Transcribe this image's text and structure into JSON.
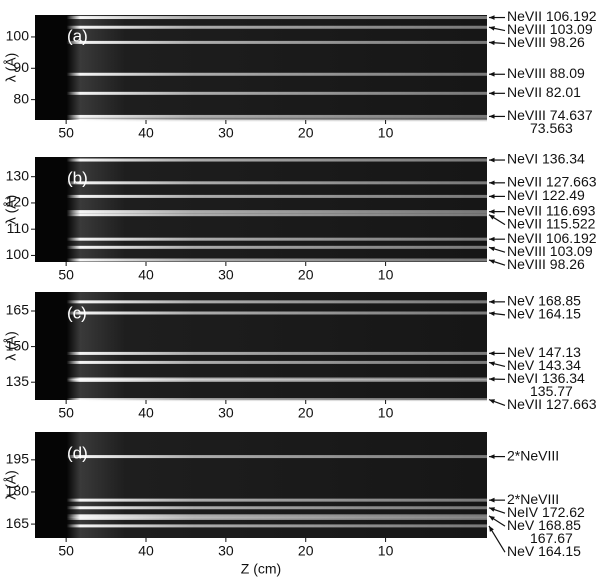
{
  "chart_data": [
    {
      "type": "spectral-image",
      "panel_label": "(a)",
      "ylabel": "λ (Å)",
      "xlim": [
        53.9,
        -2.7
      ],
      "xticks": [
        50,
        40,
        30,
        20,
        10
      ],
      "ylim": [
        73.5,
        107
      ],
      "yticks": [
        80,
        90,
        100
      ],
      "annotations": [
        {
          "label": "NeVII 106.192",
          "y": 106.192
        },
        {
          "label": "NeVIII 103.09",
          "y": 103.09
        },
        {
          "label": "NeVIII 98.26",
          "y": 98.26
        },
        {
          "label": "NeVIII 88.09",
          "y": 88.09
        },
        {
          "label": "NeVII 82.01",
          "y": 82.01
        },
        {
          "label": "NeVIII 74.637",
          "y": 74.637
        },
        {
          "label": "73.563",
          "y": 73.563,
          "arrow": false
        }
      ]
    },
    {
      "type": "spectral-image",
      "panel_label": "(b)",
      "ylabel": "λ (Å)",
      "xlim": [
        53.9,
        -2.7
      ],
      "xticks": [
        50,
        40,
        30,
        20,
        10
      ],
      "ylim": [
        97.5,
        137.5
      ],
      "yticks": [
        100,
        110,
        120,
        130
      ],
      "annotations": [
        {
          "label": "NeVI 136.34",
          "y": 136.34
        },
        {
          "label": "NeVII 127.663",
          "y": 127.663
        },
        {
          "label": "NeVI 122.49",
          "y": 122.49
        },
        {
          "label": "NeVII 116.693",
          "y": 116.693
        },
        {
          "label": "NeVII 115.522",
          "y": 115.522
        },
        {
          "label": "NeVII 106.192",
          "y": 106.192
        },
        {
          "label": "NeVIII 103.09",
          "y": 103.09
        },
        {
          "label": "NeVIII 98.26",
          "y": 98.26
        }
      ]
    },
    {
      "type": "spectral-image",
      "panel_label": "(c)",
      "ylabel": "λ (Å)",
      "xlim": [
        53.9,
        -2.7
      ],
      "xticks": [
        50,
        40,
        30,
        20,
        10
      ],
      "ylim": [
        127.5,
        173
      ],
      "yticks": [
        135,
        150,
        165
      ],
      "annotations": [
        {
          "label": "NeV 168.85",
          "y": 168.85
        },
        {
          "label": "NeV 164.15",
          "y": 164.15
        },
        {
          "label": "NeV 147.13",
          "y": 147.13
        },
        {
          "label": "NeV 143.34",
          "y": 143.34
        },
        {
          "label": "NeVI 136.34",
          "y": 136.34
        },
        {
          "label": "135.77",
          "y": 135.77,
          "arrow": false
        },
        {
          "label": "NeVII 127.663",
          "y": 127.663
        }
      ]
    },
    {
      "type": "spectral-image",
      "panel_label": "(d)",
      "ylabel": "λ (Å)",
      "xlabel": "Z (cm)",
      "xlim": [
        53.9,
        -2.7
      ],
      "xticks": [
        50,
        40,
        30,
        20,
        10
      ],
      "ylim": [
        158.5,
        208
      ],
      "yticks": [
        165,
        180,
        195
      ],
      "annotations": [
        {
          "label": "2*NeVIII",
          "y": 196.52
        },
        {
          "label": "2*NeVIII",
          "y": 176.18
        },
        {
          "label": "NeIV 172.62",
          "y": 172.62
        },
        {
          "label": "NeV 168.85",
          "y": 168.85
        },
        {
          "label": "167.67",
          "y": 167.67,
          "arrow": false
        },
        {
          "label": "NeV 164.15",
          "y": 164.15
        }
      ]
    }
  ]
}
